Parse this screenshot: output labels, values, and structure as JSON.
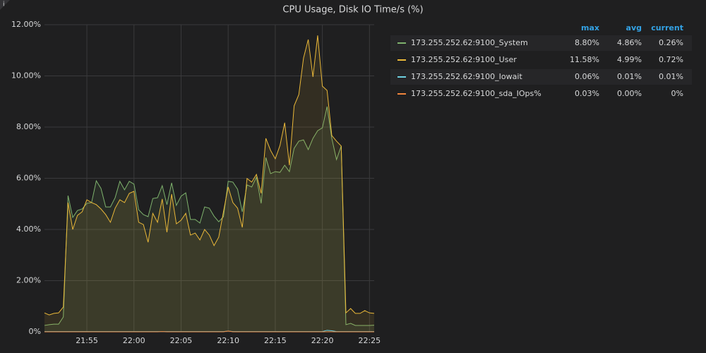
{
  "chart_data": {
    "type": "line",
    "title": "CPU Usage, Disk IO Time/s (%)",
    "x": [
      1310.5,
      1311,
      1311.5,
      1312,
      1312.5,
      1313,
      1313.5,
      1314,
      1314.5,
      1315,
      1315.5,
      1316,
      1316.5,
      1317,
      1317.5,
      1318,
      1318.5,
      1319,
      1319.5,
      1320,
      1320.5,
      1321,
      1321.5,
      1322,
      1322.5,
      1323,
      1323.5,
      1324,
      1324.5,
      1325,
      1325.5,
      1326,
      1326.5,
      1327,
      1327.5,
      1328,
      1328.5,
      1329,
      1329.5,
      1330,
      1330.5,
      1331,
      1331.5,
      1332,
      1332.5,
      1333,
      1333.5,
      1334,
      1334.5,
      1335,
      1335.5,
      1336,
      1336.5,
      1337,
      1337.5,
      1338,
      1338.5,
      1339,
      1339.5,
      1340,
      1340.5,
      1341,
      1341.5,
      1342,
      1342.5,
      1343,
      1343.5,
      1344,
      1344.5,
      1345,
      1345.5
    ],
    "xlim": [
      1310.5,
      1345.5
    ],
    "xticks": [
      {
        "value": 1315,
        "label": "21:55"
      },
      {
        "value": 1320,
        "label": "22:00"
      },
      {
        "value": 1325,
        "label": "22:05"
      },
      {
        "value": 1330,
        "label": "22:10"
      },
      {
        "value": 1335,
        "label": "22:15"
      },
      {
        "value": 1340,
        "label": "22:20"
      },
      {
        "value": 1345,
        "label": "22:25"
      }
    ],
    "ylim": [
      0,
      12
    ],
    "yticks": [
      {
        "value": 0,
        "label": "0%"
      },
      {
        "value": 2,
        "label": "2.00%"
      },
      {
        "value": 4,
        "label": "4.00%"
      },
      {
        "value": 6,
        "label": "6.00%"
      },
      {
        "value": 8,
        "label": "8.00%"
      },
      {
        "value": 10,
        "label": "10.00%"
      },
      {
        "value": 12,
        "label": "12.00%"
      }
    ],
    "grid": true,
    "legend_columns": [
      "max",
      "avg",
      "current"
    ],
    "series": [
      {
        "name": "173.255.252.62:9100_System",
        "color": "#7eb26d",
        "stats": [
          "8.80%",
          "4.86%",
          "0.26%"
        ],
        "values": [
          0.25,
          0.28,
          0.3,
          0.3,
          0.58,
          5.32,
          4.47,
          4.74,
          4.8,
          5.02,
          5.05,
          5.9,
          5.6,
          4.88,
          4.88,
          5.24,
          5.88,
          5.55,
          5.88,
          5.77,
          4.77,
          4.58,
          4.5,
          5.21,
          5.24,
          5.71,
          4.97,
          5.82,
          4.94,
          5.3,
          5.43,
          4.39,
          4.39,
          4.25,
          4.88,
          4.83,
          4.52,
          4.3,
          4.5,
          5.88,
          5.85,
          5.57,
          4.69,
          5.74,
          5.66,
          6.04,
          5.02,
          6.81,
          6.18,
          6.26,
          6.23,
          6.51,
          6.26,
          7.17,
          7.45,
          7.5,
          7.12,
          7.56,
          7.86,
          7.97,
          8.8,
          7.56,
          6.73,
          7.26,
          0.28,
          0.33,
          0.25,
          0.25,
          0.25,
          0.25,
          0.26
        ]
      },
      {
        "name": "173.255.252.62:9100_User",
        "color": "#eab839",
        "stats": [
          "11.58%",
          "4.99%",
          "0.72%"
        ],
        "values": [
          0.74,
          0.66,
          0.72,
          0.74,
          0.97,
          5.05,
          4.0,
          4.55,
          4.69,
          5.16,
          5.05,
          4.97,
          4.8,
          4.58,
          4.28,
          4.83,
          5.16,
          5.05,
          5.41,
          5.49,
          4.28,
          4.19,
          3.5,
          4.63,
          4.28,
          5.19,
          3.89,
          5.38,
          4.22,
          4.36,
          4.63,
          3.78,
          3.86,
          3.59,
          4.0,
          3.78,
          3.37,
          3.7,
          4.69,
          5.66,
          5.05,
          4.83,
          4.08,
          5.99,
          5.85,
          6.15,
          5.41,
          7.56,
          7.09,
          6.76,
          7.28,
          8.17,
          6.51,
          8.83,
          9.27,
          10.7,
          11.42,
          9.96,
          11.58,
          9.6,
          9.43,
          7.67,
          7.45,
          7.26,
          0.74,
          0.91,
          0.72,
          0.72,
          0.83,
          0.74,
          0.72
        ]
      },
      {
        "name": "173.255.252.62:9100_Iowait",
        "color": "#6ed0e0",
        "stats": [
          "0.06%",
          "0.01%",
          "0.01%"
        ],
        "values": [
          0.01,
          0.01,
          0.01,
          0.01,
          0.01,
          0.01,
          0.01,
          0.01,
          0.01,
          0.01,
          0.01,
          0.01,
          0.01,
          0.01,
          0.01,
          0.01,
          0.01,
          0.01,
          0.01,
          0.01,
          0.01,
          0.01,
          0.01,
          0.01,
          0.01,
          0.01,
          0.01,
          0.01,
          0.01,
          0.01,
          0.01,
          0.01,
          0.01,
          0.01,
          0.01,
          0.01,
          0.01,
          0.01,
          0.01,
          0.03,
          0.01,
          0.01,
          0.01,
          0.01,
          0.01,
          0.01,
          0.01,
          0.01,
          0.01,
          0.01,
          0.01,
          0.01,
          0.01,
          0.01,
          0.01,
          0.01,
          0.01,
          0.01,
          0.01,
          0.01,
          0.06,
          0.04,
          0.01,
          0.01,
          0.01,
          0.01,
          0.01,
          0.01,
          0.01,
          0.01,
          0.01
        ]
      },
      {
        "name": "173.255.252.62:9100_sda_IOps%",
        "color": "#ef843c",
        "stats": [
          "0.03%",
          "0.00%",
          "0%"
        ],
        "values": [
          0,
          0,
          0,
          0,
          0,
          0,
          0,
          0,
          0,
          0,
          0,
          0,
          0,
          0,
          0,
          0,
          0,
          0,
          0,
          0,
          0,
          0,
          0,
          0,
          0,
          0.01,
          0,
          0,
          0,
          0,
          0,
          0,
          0,
          0,
          0,
          0,
          0,
          0,
          0,
          0.03,
          0,
          0,
          0,
          0,
          0,
          0,
          0,
          0,
          0,
          0,
          0,
          0,
          0,
          0,
          0,
          0,
          0,
          0,
          0,
          0,
          0,
          0,
          0,
          0,
          0,
          0,
          0,
          0,
          0,
          0,
          0
        ]
      }
    ]
  }
}
